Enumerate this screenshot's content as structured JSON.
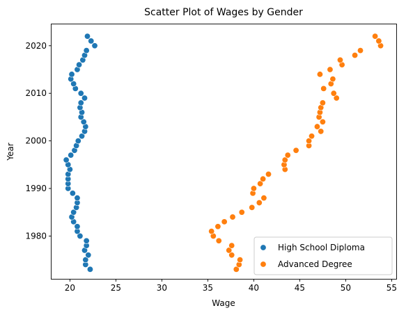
{
  "chart_data": {
    "type": "scatter",
    "title": "Scatter Plot of Wages by Gender",
    "xlabel": "Wage",
    "ylabel": "Year",
    "xlim": [
      18,
      55.5
    ],
    "ylim": [
      1971,
      2024.5
    ],
    "xticks": [
      20,
      25,
      30,
      35,
      40,
      45,
      50,
      55
    ],
    "yticks": [
      1980,
      1990,
      2000,
      2010,
      2020
    ],
    "grid": false,
    "legend_position": "bottom-right",
    "series": [
      {
        "name": "High School Diploma",
        "color": "#1f77b4",
        "points": [
          [
            22.2,
            1973
          ],
          [
            21.7,
            1974
          ],
          [
            21.7,
            1975
          ],
          [
            22.0,
            1976
          ],
          [
            21.6,
            1977
          ],
          [
            21.8,
            1978
          ],
          [
            21.8,
            1979
          ],
          [
            21.1,
            1980
          ],
          [
            20.8,
            1981
          ],
          [
            20.8,
            1982
          ],
          [
            20.4,
            1983
          ],
          [
            20.2,
            1984
          ],
          [
            20.4,
            1985
          ],
          [
            20.7,
            1986
          ],
          [
            20.8,
            1987
          ],
          [
            20.8,
            1988
          ],
          [
            20.3,
            1989
          ],
          [
            19.8,
            1990
          ],
          [
            19.8,
            1991
          ],
          [
            19.8,
            1992
          ],
          [
            19.8,
            1993
          ],
          [
            20.0,
            1994
          ],
          [
            19.8,
            1995
          ],
          [
            19.6,
            1996
          ],
          [
            20.1,
            1997
          ],
          [
            20.5,
            1998
          ],
          [
            20.7,
            1999
          ],
          [
            20.9,
            2000
          ],
          [
            21.3,
            2001
          ],
          [
            21.6,
            2002
          ],
          [
            21.7,
            2003
          ],
          [
            21.5,
            2004
          ],
          [
            21.2,
            2005
          ],
          [
            21.3,
            2006
          ],
          [
            21.1,
            2007
          ],
          [
            21.2,
            2008
          ],
          [
            21.6,
            2009
          ],
          [
            21.2,
            2010
          ],
          [
            20.6,
            2011
          ],
          [
            20.4,
            2012
          ],
          [
            20.1,
            2013
          ],
          [
            20.2,
            2014
          ],
          [
            20.8,
            2015
          ],
          [
            21.0,
            2016
          ],
          [
            21.4,
            2017
          ],
          [
            21.6,
            2018
          ],
          [
            21.8,
            2019
          ],
          [
            22.7,
            2020
          ],
          [
            22.3,
            2021
          ],
          [
            21.9,
            2022
          ]
        ]
      },
      {
        "name": "Advanced Degree",
        "color": "#ff7f0e",
        "points": [
          [
            38.1,
            1973
          ],
          [
            38.4,
            1974
          ],
          [
            38.5,
            1975
          ],
          [
            37.6,
            1976
          ],
          [
            37.3,
            1977
          ],
          [
            37.6,
            1978
          ],
          [
            36.2,
            1979
          ],
          [
            35.6,
            1980
          ],
          [
            35.4,
            1981
          ],
          [
            36.1,
            1982
          ],
          [
            36.8,
            1983
          ],
          [
            37.7,
            1984
          ],
          [
            38.7,
            1985
          ],
          [
            39.8,
            1986
          ],
          [
            40.6,
            1987
          ],
          [
            41.1,
            1988
          ],
          [
            39.9,
            1989
          ],
          [
            40.0,
            1990
          ],
          [
            40.7,
            1991
          ],
          [
            41.0,
            1992
          ],
          [
            41.6,
            1993
          ],
          [
            43.4,
            1994
          ],
          [
            43.3,
            1995
          ],
          [
            43.4,
            1996
          ],
          [
            43.7,
            1997
          ],
          [
            44.6,
            1998
          ],
          [
            46.0,
            1999
          ],
          [
            46.0,
            2000
          ],
          [
            46.3,
            2001
          ],
          [
            47.3,
            2002
          ],
          [
            46.9,
            2003
          ],
          [
            47.5,
            2004
          ],
          [
            47.1,
            2005
          ],
          [
            47.2,
            2006
          ],
          [
            47.3,
            2007
          ],
          [
            47.5,
            2008
          ],
          [
            49.0,
            2009
          ],
          [
            48.7,
            2010
          ],
          [
            47.6,
            2011
          ],
          [
            48.4,
            2012
          ],
          [
            48.6,
            2013
          ],
          [
            47.2,
            2014
          ],
          [
            48.3,
            2015
          ],
          [
            49.6,
            2016
          ],
          [
            49.4,
            2017
          ],
          [
            51.0,
            2018
          ],
          [
            51.6,
            2019
          ],
          [
            53.8,
            2020
          ],
          [
            53.6,
            2021
          ],
          [
            53.2,
            2022
          ]
        ]
      }
    ]
  }
}
